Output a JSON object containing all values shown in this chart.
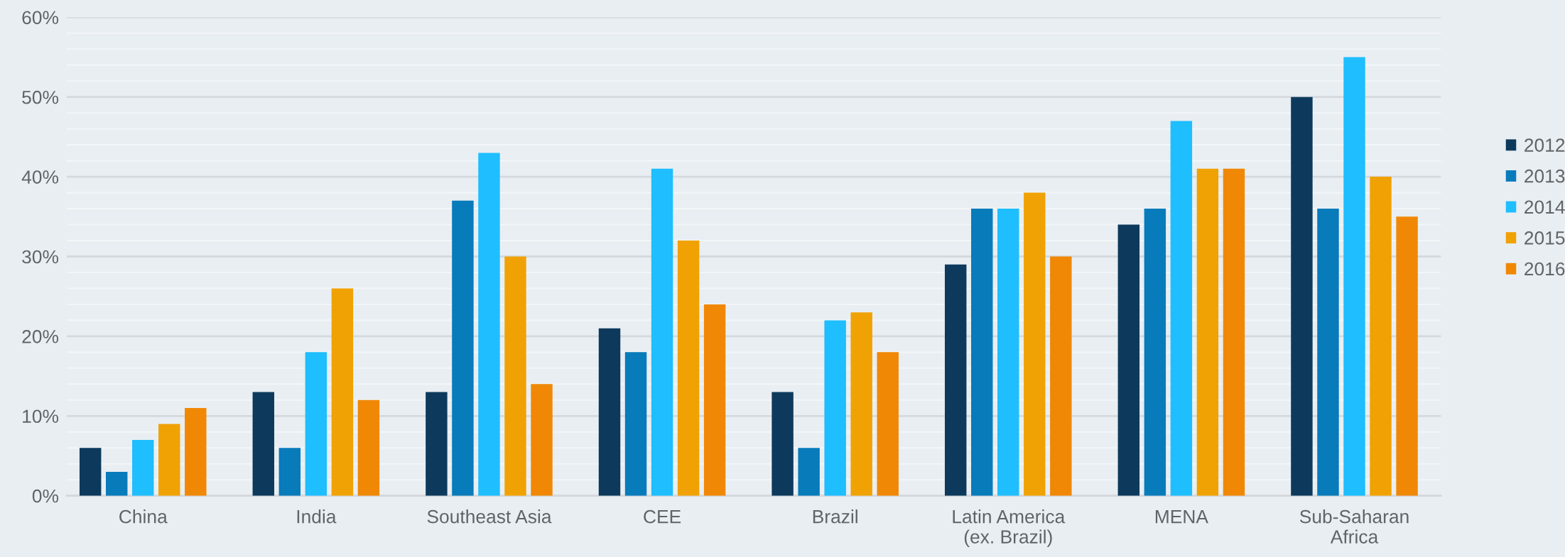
{
  "chart_data": {
    "type": "bar",
    "categories": [
      "China",
      "India",
      "Southeast Asia",
      "CEE",
      "Brazil",
      "Latin America\n(ex. Brazil)",
      "MENA",
      "Sub-Saharan\nAfrica"
    ],
    "series": [
      {
        "name": "2012",
        "color": "#0d3a5c",
        "values": [
          6,
          13,
          13,
          21,
          13,
          29,
          34,
          50
        ]
      },
      {
        "name": "2013",
        "color": "#087bbb",
        "values": [
          3,
          6,
          37,
          18,
          6,
          36,
          36,
          36
        ]
      },
      {
        "name": "2014",
        "color": "#1ebeff",
        "values": [
          7,
          18,
          43,
          41,
          22,
          36,
          47,
          55
        ]
      },
      {
        "name": "2015",
        "color": "#f0a204",
        "values": [
          9,
          26,
          30,
          32,
          23,
          38,
          41,
          40
        ]
      },
      {
        "name": "2016",
        "color": "#f08806",
        "values": [
          11,
          12,
          14,
          24,
          18,
          30,
          41,
          35
        ]
      }
    ],
    "ylim": [
      0,
      60
    ],
    "yticks": [
      {
        "value": 0,
        "label": "0%"
      },
      {
        "value": 2,
        "label": null
      },
      {
        "value": 4,
        "label": null
      },
      {
        "value": 6,
        "label": null
      },
      {
        "value": 8,
        "label": null
      },
      {
        "value": 10,
        "label": "10%"
      },
      {
        "value": 12,
        "label": null
      },
      {
        "value": 14,
        "label": null
      },
      {
        "value": 16,
        "label": null
      },
      {
        "value": 18,
        "label": null
      },
      {
        "value": 20,
        "label": "20%"
      },
      {
        "value": 22,
        "label": null
      },
      {
        "value": 24,
        "label": null
      },
      {
        "value": 26,
        "label": null
      },
      {
        "value": 28,
        "label": null
      },
      {
        "value": 30,
        "label": "30%"
      },
      {
        "value": 32,
        "label": null
      },
      {
        "value": 34,
        "label": null
      },
      {
        "value": 36,
        "label": null
      },
      {
        "value": 38,
        "label": null
      },
      {
        "value": 40,
        "label": "40%"
      },
      {
        "value": 42,
        "label": null
      },
      {
        "value": 44,
        "label": null
      },
      {
        "value": 46,
        "label": null
      },
      {
        "value": 48,
        "label": null
      },
      {
        "value": 50,
        "label": "50%"
      },
      {
        "value": 52,
        "label": null
      },
      {
        "value": 54,
        "label": null
      },
      {
        "value": 56,
        "label": null
      },
      {
        "value": 58,
        "label": null
      },
      {
        "value": 60,
        "label": "60%"
      }
    ],
    "grid": "y",
    "legend": "right"
  }
}
